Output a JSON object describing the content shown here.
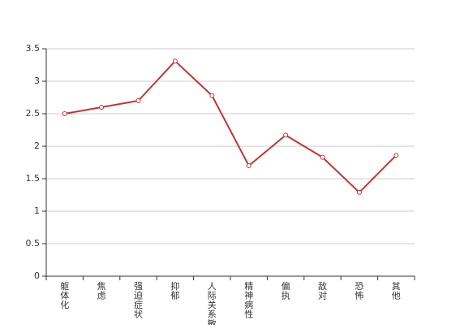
{
  "chart_data": {
    "type": "line",
    "categories": [
      "躯体化",
      "焦虑",
      "强迫症状",
      "抑郁",
      "人际关系敏感",
      "精神病性",
      "偏执",
      "敌对",
      "恐怖",
      "其他"
    ],
    "series": [
      {
        "values": [
          2.5,
          2.6,
          2.7,
          3.31,
          2.78,
          1.7,
          2.17,
          1.83,
          1.29,
          1.86
        ],
        "color": "#c23531"
      }
    ],
    "y_ticks": [
      "0",
      "0.5",
      "1",
      "1.5",
      "2",
      "2.5",
      "3",
      "3.5"
    ],
    "ylim": [
      0,
      3.5
    ],
    "grid": true,
    "legend": "none",
    "title": "",
    "xlabel": "",
    "ylabel": ""
  }
}
